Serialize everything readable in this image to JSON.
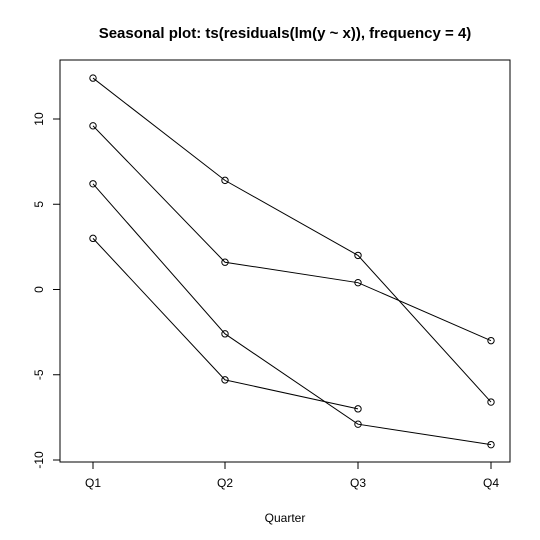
{
  "chart_data": {
    "type": "line",
    "title": "Seasonal plot: ts(residuals(lm(y ~ x)), frequency = 4)",
    "xlabel": "Quarter",
    "ylabel": "",
    "categories": [
      "Q1",
      "Q2",
      "Q3",
      "Q4"
    ],
    "yticks": [
      -10,
      -5,
      0,
      5,
      10
    ],
    "ytick_labels": [
      "-10",
      "-5",
      "0",
      "5",
      "10"
    ],
    "ylim": [
      -10,
      12.5
    ],
    "grid": false,
    "series": [
      {
        "values": [
          12.4,
          6.4,
          2.0,
          -6.6
        ]
      },
      {
        "values": [
          9.6,
          1.6,
          0.4,
          -3.0
        ]
      },
      {
        "values": [
          6.2,
          -2.6,
          -7.9,
          -9.1
        ]
      },
      {
        "values": [
          3.0,
          -5.3,
          -7.0,
          null
        ]
      }
    ]
  }
}
